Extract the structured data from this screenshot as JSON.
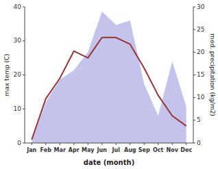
{
  "chart_data": {
    "type": "line",
    "categories": [
      "Jan",
      "Feb",
      "Mar",
      "Apr",
      "May",
      "Jun",
      "Jul",
      "Aug",
      "Sep",
      "Oct",
      "Nov",
      "Dec"
    ],
    "xlabel": "date (month)",
    "ylabel": "max temp (C)",
    "y2label": "med. precipitation (kg/m2)",
    "series": [
      {
        "type": "area",
        "axis": "y2",
        "color": "#b8b8e8",
        "values": [
          0.5,
          9,
          14,
          16,
          20,
          29,
          26,
          27,
          13,
          6,
          18,
          8
        ]
      },
      {
        "type": "line",
        "color": "#993333",
        "values": [
          1,
          13,
          19,
          27,
          25,
          31,
          31,
          29,
          22,
          14,
          8,
          5
        ]
      }
    ],
    "ylim": [
      0,
      40
    ],
    "yticks": [
      0,
      10,
      20,
      30,
      40
    ],
    "y2lim": [
      0,
      30
    ],
    "y2ticks": [
      0,
      5,
      10,
      15,
      20,
      25,
      30
    ],
    "grid": false
  }
}
